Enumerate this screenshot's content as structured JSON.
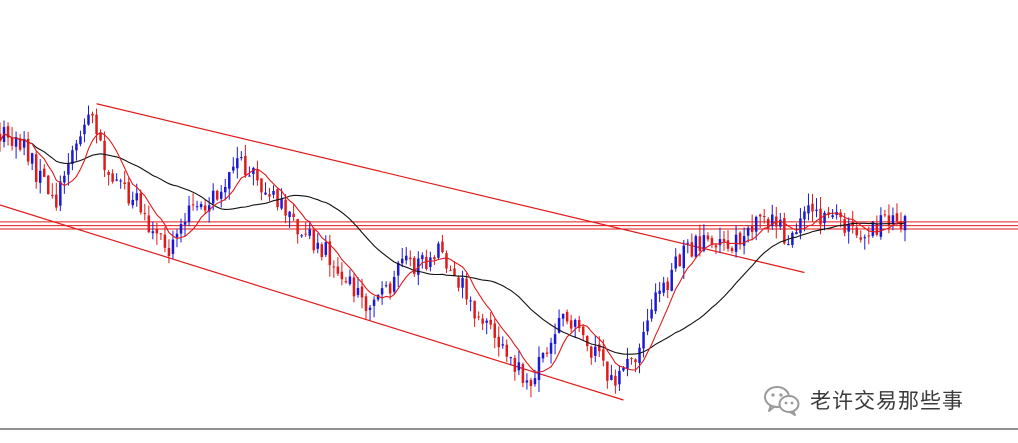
{
  "chart_data": {
    "type": "candlestick",
    "title": "",
    "xlabel": "",
    "ylabel": "",
    "x_count": 226,
    "ylim": [
      0,
      100
    ],
    "grid": false,
    "legend": "none",
    "colors": {
      "up": "#1a1ad6",
      "down": "#e01a1a",
      "wick": "#333333",
      "fast_ma": "#e01a1a",
      "slow_ma": "#111111",
      "trendline": "#e01a1a",
      "hline": "#e01a1a",
      "bottom_axis": "#222222"
    },
    "anchors": [
      [
        0,
        76
      ],
      [
        6,
        71
      ],
      [
        10,
        63
      ],
      [
        14,
        58
      ],
      [
        18,
        70
      ],
      [
        22,
        82
      ],
      [
        26,
        67
      ],
      [
        33,
        58
      ],
      [
        38,
        50
      ],
      [
        42,
        44
      ],
      [
        48,
        55
      ],
      [
        54,
        59
      ],
      [
        60,
        68
      ],
      [
        66,
        61
      ],
      [
        70,
        55
      ],
      [
        74,
        49
      ],
      [
        80,
        45
      ],
      [
        86,
        37
      ],
      [
        92,
        29
      ],
      [
        97,
        35
      ],
      [
        100,
        41
      ],
      [
        106,
        40
      ],
      [
        110,
        44
      ],
      [
        114,
        36
      ],
      [
        118,
        27
      ],
      [
        124,
        20
      ],
      [
        128,
        12
      ],
      [
        132,
        10
      ],
      [
        136,
        18
      ],
      [
        140,
        26
      ],
      [
        146,
        20
      ],
      [
        150,
        12
      ],
      [
        154,
        10
      ],
      [
        158,
        17
      ],
      [
        162,
        28
      ],
      [
        166,
        36
      ],
      [
        170,
        43
      ],
      [
        175,
        46
      ],
      [
        180,
        45
      ],
      [
        186,
        48
      ],
      [
        190,
        52
      ],
      [
        196,
        48
      ],
      [
        200,
        55
      ],
      [
        206,
        53
      ],
      [
        212,
        49
      ],
      [
        218,
        50
      ],
      [
        222,
        52
      ],
      [
        225,
        51
      ]
    ],
    "fast_ma_period": 8,
    "slow_ma_period": 30,
    "trendlines": [
      {
        "name": "channel-upper",
        "x": [
          24,
          200
        ],
        "y": [
          83,
          38
        ]
      },
      {
        "name": "channel-lower",
        "x": [
          0,
          155
        ],
        "y": [
          56,
          4
        ]
      }
    ],
    "horizontal_levels": [
      51.5,
      50.5,
      49.6
    ]
  },
  "watermark": {
    "icon": "wechat-icon",
    "text": "老许交易那些事"
  }
}
